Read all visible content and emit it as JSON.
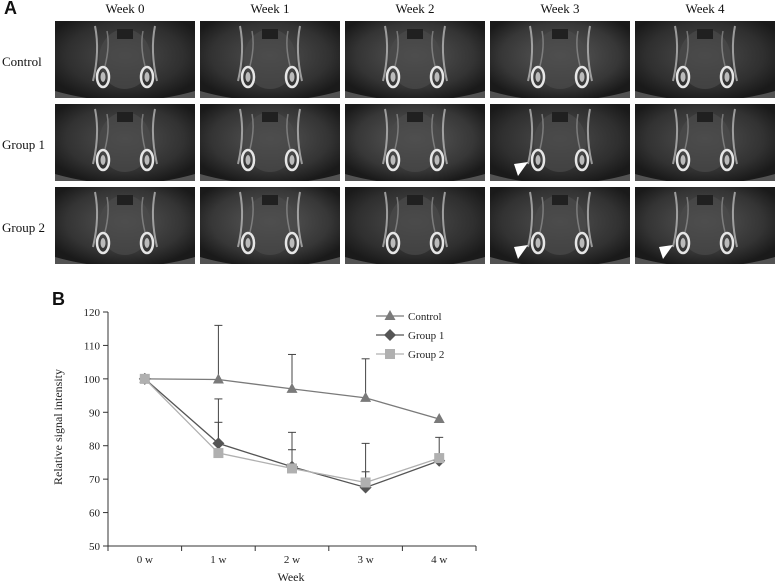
{
  "panel_a": {
    "letter": "A",
    "columns": [
      "Week 0",
      "Week 1",
      "Week 2",
      "Week 3",
      "Week 4"
    ],
    "rows": [
      "Control",
      "Group 1",
      "Group 2"
    ],
    "arrowheads": [
      {
        "row": 1,
        "col": 3
      },
      {
        "row": 2,
        "col": 3
      },
      {
        "row": 2,
        "col": 4
      }
    ]
  },
  "panel_b": {
    "letter": "B"
  },
  "chart_data": {
    "type": "line",
    "categories": [
      "0 w",
      "1 w",
      "2 w",
      "3 w",
      "4 w"
    ],
    "xlabel": "Week",
    "ylabel": "Relative signal intensity",
    "ylim": [
      50,
      120
    ],
    "yticks": [
      50,
      60,
      70,
      80,
      90,
      100,
      110,
      120
    ],
    "grid": false,
    "legend_position": "top-right",
    "series": [
      {
        "name": "Control",
        "marker": "triangle",
        "color": "#7a7a7a",
        "values": [
          100,
          99.8,
          97,
          94.3,
          88
        ],
        "error_upper": [
          100,
          116,
          107.3,
          106,
          88
        ]
      },
      {
        "name": "Group 1",
        "marker": "diamond",
        "color": "#555555",
        "values": [
          100,
          80.7,
          73.7,
          67.5,
          75.5
        ],
        "error_upper": [
          100,
          94,
          84,
          72.2,
          75.5
        ]
      },
      {
        "name": "Group 2",
        "marker": "square",
        "color": "#b0b0b0",
        "values": [
          100,
          77.8,
          73.2,
          69,
          76.3
        ],
        "error_upper": [
          100,
          87,
          78.8,
          80.7,
          82.5
        ]
      }
    ]
  }
}
